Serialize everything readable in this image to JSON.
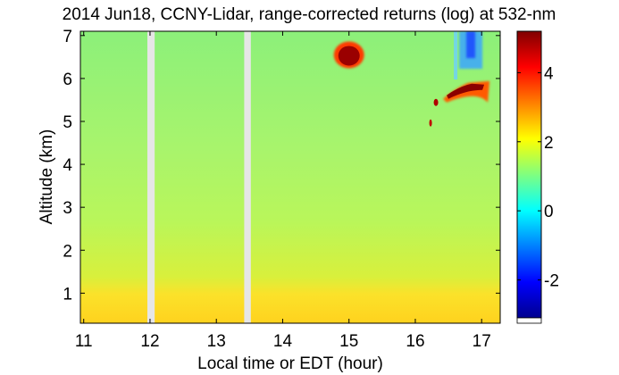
{
  "chart_data": {
    "type": "heatmap",
    "title": "2014 Jun18, CCNY-Lidar, range-corrected returns (log) at 532-nm",
    "xlabel": "Local time or EDT (hour)",
    "ylabel": "Altitude (km)",
    "xlim": [
      10.95,
      17.28
    ],
    "ylim": [
      0.3,
      7.1
    ],
    "xticks": [
      11,
      12,
      13,
      14,
      15,
      16,
      17
    ],
    "yticks": [
      1,
      2,
      3,
      4,
      5,
      6,
      7
    ],
    "colorbar": {
      "range": [
        -3.1,
        5.2
      ],
      "ticks": [
        -2,
        0,
        2,
        4
      ],
      "colormap": "jet"
    },
    "data_gaps": [
      [
        11.96,
        12.07
      ],
      [
        13.42,
        13.52
      ]
    ],
    "background_layers": [
      {
        "name": "boundary-layer",
        "altitude": [
          0.3,
          1.3
        ],
        "value": 2.6
      },
      {
        "name": "upper-air",
        "altitude": [
          1.3,
          7.1
        ],
        "value": 1.6
      }
    ],
    "features": [
      {
        "name": "cloud-1",
        "x": 15.0,
        "y": 6.55,
        "value": 5.0
      },
      {
        "name": "cloud-2",
        "x": 16.85,
        "y": 5.9,
        "value": 4.6
      },
      {
        "name": "noise-region",
        "x": 16.85,
        "y": 6.6,
        "value": -2.5
      }
    ]
  },
  "colors": {
    "gap": "#e6e6e6",
    "background": "#ffffff",
    "text": "#000000"
  }
}
